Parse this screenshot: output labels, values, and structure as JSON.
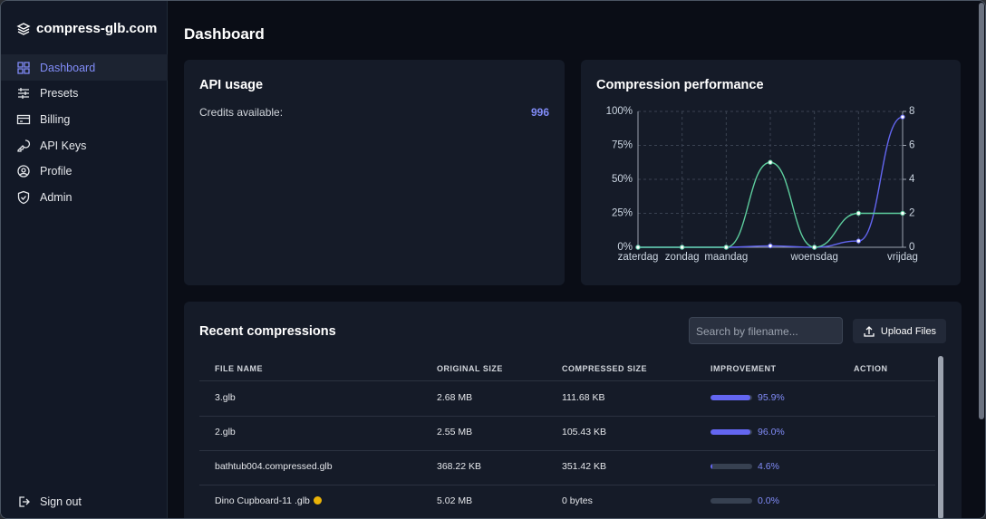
{
  "sidebar": {
    "brand": "compress-glb.com",
    "nav": [
      "Dashboard",
      "Presets",
      "Billing",
      "API Keys",
      "Profile",
      "Admin"
    ],
    "sign_out": "Sign out"
  },
  "page_title": "Dashboard",
  "api_usage": {
    "title": "API usage",
    "credits_label": "Credits available:",
    "credits": 996
  },
  "chart_data": {
    "type": "line",
    "title": "Compression performance",
    "categories": [
      "zaterdag",
      "zondag",
      "maandag",
      null,
      "woensdag",
      null,
      "vrijdag"
    ],
    "series": [
      {
        "color": "#6366f1",
        "values": [
          0,
          0,
          0,
          1,
          0,
          4.6,
          95.9
        ]
      },
      {
        "color": "#5ecf9f",
        "axis": "y2",
        "values": [
          0,
          0,
          0,
          5,
          0,
          2,
          2
        ]
      }
    ],
    "ylim": [
      0,
      100
    ],
    "yticks": [
      {
        "value": 0,
        "label": "0%"
      },
      {
        "value": 25,
        "label": "25%"
      },
      {
        "value": 50,
        "label": "50%"
      },
      {
        "value": 75,
        "label": "75%"
      },
      {
        "value": 100,
        "label": "100%"
      }
    ],
    "y2lim": [
      0,
      8
    ],
    "y2ticks": [
      0,
      2,
      4,
      6,
      8
    ],
    "grid": true
  },
  "recent": {
    "title": "Recent compressions",
    "search_placeholder": "Search by filename...",
    "upload": "Upload Files",
    "table": {
      "columns": [
        "FILE NAME",
        "ORIGINAL SIZE",
        "COMPRESSED SIZE",
        "IMPROVEMENT",
        "ACTION"
      ],
      "rows": [
        {
          "file": "3.glb",
          "original": "2.68 MB",
          "compressed": "111.68 KB",
          "improvement": 95.9,
          "improvement_label": "95.9%"
        },
        {
          "file": "2.glb",
          "original": "2.55 MB",
          "compressed": "105.43 KB",
          "improvement": 96,
          "improvement_label": "96.0%"
        },
        {
          "file": "bathtub004.compressed.glb",
          "original": "368.22 KB",
          "compressed": "351.42 KB",
          "improvement": 4.6,
          "improvement_label": "4.6%"
        },
        {
          "file": "Dino Cupboard-11 .glb",
          "original": "5.02 MB",
          "compressed": "0 bytes",
          "improvement": 0,
          "improvement_label": "0.0%"
        }
      ]
    }
  }
}
